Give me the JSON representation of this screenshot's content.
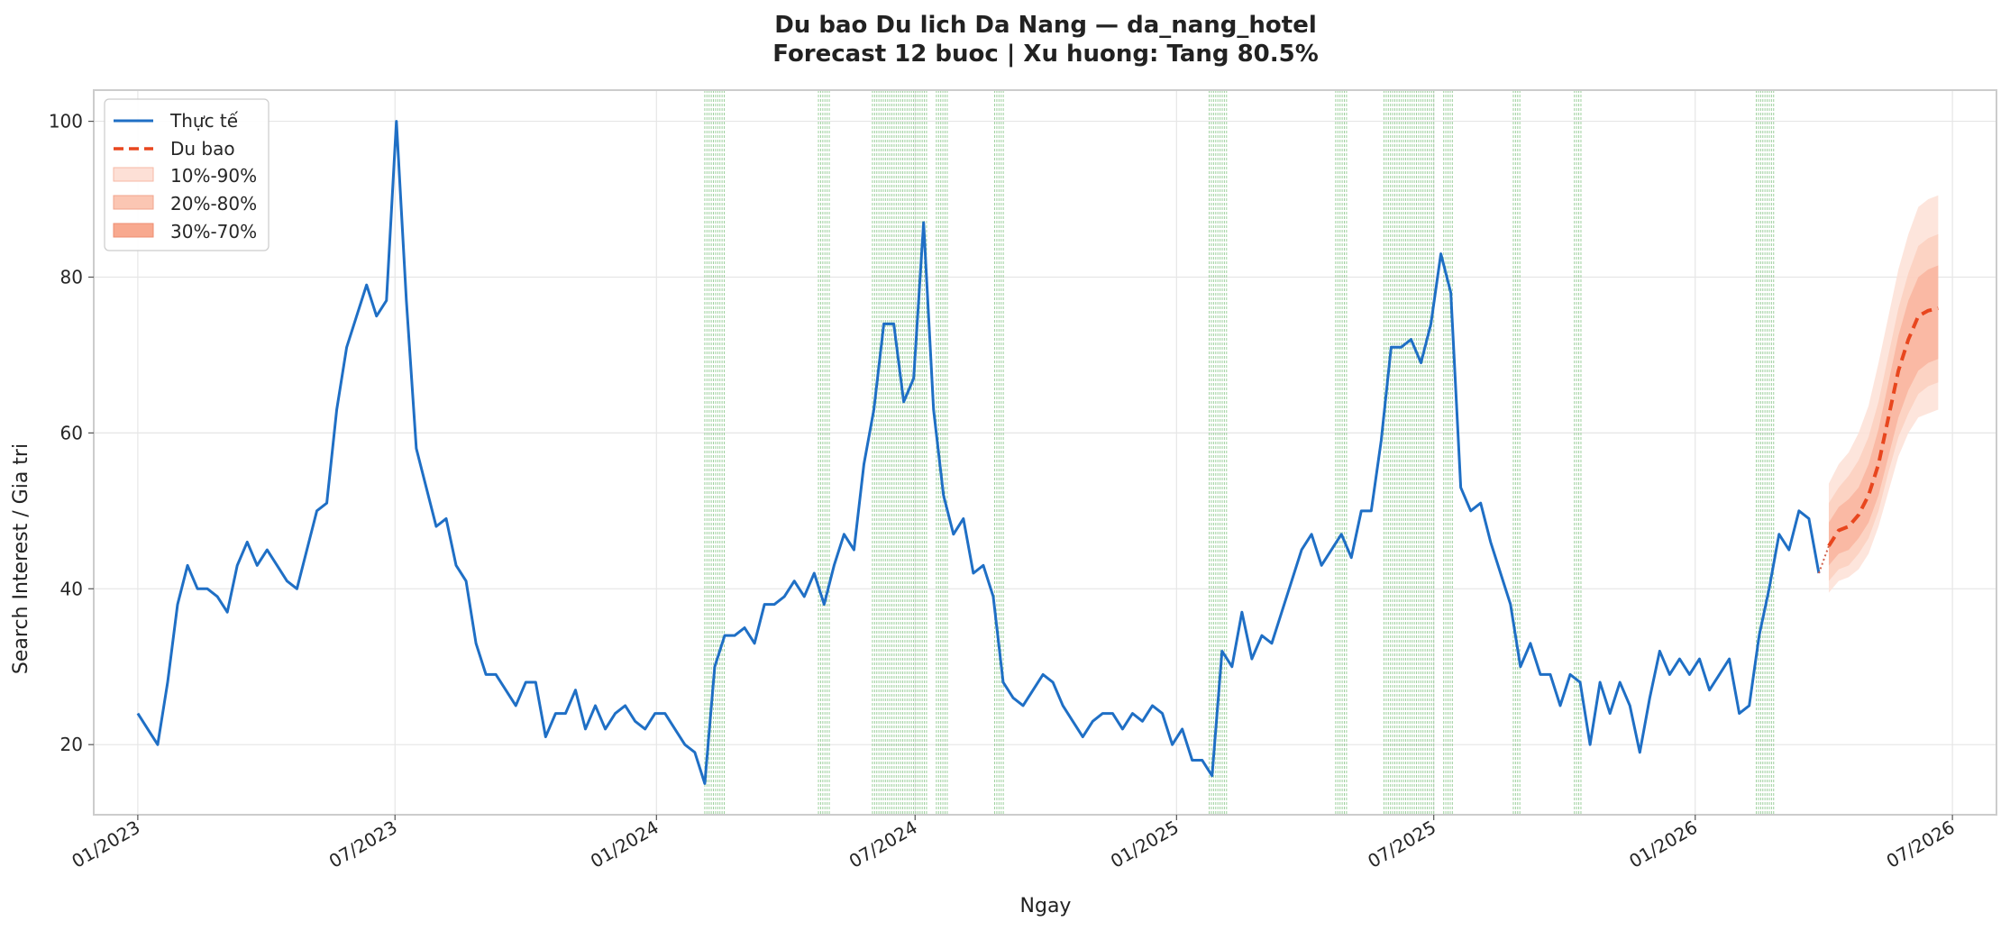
{
  "chart_data": {
    "type": "line",
    "title": "Du bao Du lich Da Nang — da_nang_hotel",
    "subtitle": "Forecast 12 buoc | Xu huong: Tang 80.5%",
    "xlabel": "Ngay",
    "ylabel": "Search Interest / Gia tri",
    "xlim": [
      "2022-12-01",
      "2026-08-01"
    ],
    "ylim": [
      11,
      104
    ],
    "grid": true,
    "legend_position": "top-left",
    "x_tick_labels": [
      {
        "date": "2023-01-01",
        "label": "01/2023"
      },
      {
        "date": "2023-07-01",
        "label": "07/2023"
      },
      {
        "date": "2024-01-01",
        "label": "01/2024"
      },
      {
        "date": "2024-07-01",
        "label": "07/2024"
      },
      {
        "date": "2025-01-01",
        "label": "01/2025"
      },
      {
        "date": "2025-07-01",
        "label": "07/2025"
      },
      {
        "date": "2026-01-01",
        "label": "01/2026"
      },
      {
        "date": "2026-07-01",
        "label": "07/2026"
      }
    ],
    "y_ticks": [
      20,
      40,
      60,
      80,
      100
    ],
    "colors": {
      "actual": "#1f6fc5",
      "forecast": "#e8461e",
      "band_10_90": "#fde0d6",
      "band_20_80": "#fbc6b3",
      "band_30_70": "#f8a98f",
      "holiday": "#7cc07c",
      "grid": "#e6e6e6"
    },
    "legend": {
      "actual": "Thực tế",
      "forecast": "Du bao",
      "band_10_90": "10%-90%",
      "band_20_80": "20%-80%",
      "band_30_70": "30%-70%"
    },
    "series": [
      {
        "name": "Thực tế",
        "x": [
          "2023-01-01",
          "2023-01-08",
          "2023-01-15",
          "2023-01-22",
          "2023-01-29",
          "2023-02-05",
          "2023-02-12",
          "2023-02-19",
          "2023-02-26",
          "2023-03-05",
          "2023-03-12",
          "2023-03-19",
          "2023-03-26",
          "2023-04-02",
          "2023-04-09",
          "2023-04-16",
          "2023-04-23",
          "2023-04-30",
          "2023-05-07",
          "2023-05-14",
          "2023-05-21",
          "2023-05-28",
          "2023-06-04",
          "2023-06-11",
          "2023-06-18",
          "2023-06-25",
          "2023-07-02",
          "2023-07-09",
          "2023-07-16",
          "2023-07-23",
          "2023-07-30",
          "2023-08-06",
          "2023-08-13",
          "2023-08-20",
          "2023-08-27",
          "2023-09-03",
          "2023-09-10",
          "2023-09-17",
          "2023-09-24",
          "2023-10-01",
          "2023-10-08",
          "2023-10-15",
          "2023-10-22",
          "2023-10-29",
          "2023-11-05",
          "2023-11-12",
          "2023-11-19",
          "2023-11-26",
          "2023-12-03",
          "2023-12-10",
          "2023-12-17",
          "2023-12-24",
          "2023-12-31",
          "2024-01-07",
          "2024-01-14",
          "2024-01-21",
          "2024-01-28",
          "2024-02-04",
          "2024-02-11",
          "2024-02-18",
          "2024-02-25",
          "2024-03-03",
          "2024-03-10",
          "2024-03-17",
          "2024-03-24",
          "2024-03-31",
          "2024-04-07",
          "2024-04-14",
          "2024-04-21",
          "2024-04-28",
          "2024-05-05",
          "2024-05-12",
          "2024-05-19",
          "2024-05-26",
          "2024-06-02",
          "2024-06-09",
          "2024-06-16",
          "2024-06-23",
          "2024-06-30",
          "2024-07-07",
          "2024-07-14",
          "2024-07-21",
          "2024-07-28",
          "2024-08-04",
          "2024-08-11",
          "2024-08-18",
          "2024-08-25",
          "2024-09-01",
          "2024-09-08",
          "2024-09-15",
          "2024-09-22",
          "2024-09-29",
          "2024-10-06",
          "2024-10-13",
          "2024-10-20",
          "2024-10-27",
          "2024-11-03",
          "2024-11-10",
          "2024-11-17",
          "2024-11-24",
          "2024-12-01",
          "2024-12-08",
          "2024-12-15",
          "2024-12-22",
          "2024-12-29",
          "2025-01-05",
          "2025-01-12",
          "2025-01-19",
          "2025-01-26",
          "2025-02-02",
          "2025-02-09",
          "2025-02-16",
          "2025-02-23",
          "2025-03-02",
          "2025-03-09",
          "2025-03-16",
          "2025-03-23",
          "2025-03-30",
          "2025-04-06",
          "2025-04-13",
          "2025-04-20",
          "2025-04-27",
          "2025-05-04",
          "2025-05-11",
          "2025-05-18",
          "2025-05-25",
          "2025-06-01",
          "2025-06-08",
          "2025-06-15",
          "2025-06-22",
          "2025-06-29",
          "2025-07-06",
          "2025-07-13",
          "2025-07-20",
          "2025-07-27",
          "2025-08-03",
          "2025-08-10",
          "2025-08-17",
          "2025-08-24",
          "2025-08-31",
          "2025-09-07",
          "2025-09-14",
          "2025-09-21",
          "2025-09-28",
          "2025-10-05",
          "2025-10-12",
          "2025-10-19",
          "2025-10-26",
          "2025-11-02",
          "2025-11-09",
          "2025-11-16",
          "2025-11-23",
          "2025-11-30",
          "2025-12-07",
          "2025-12-14",
          "2025-12-21",
          "2025-12-28",
          "2026-01-04",
          "2026-01-11",
          "2026-01-18",
          "2026-01-25",
          "2026-02-01",
          "2026-02-08",
          "2026-02-15",
          "2026-02-22",
          "2026-03-01",
          "2026-03-08",
          "2026-03-15",
          "2026-03-22",
          "2026-03-29"
        ],
        "values": [
          24,
          22,
          20,
          28,
          38,
          43,
          40,
          40,
          39,
          37,
          43,
          46,
          43,
          45,
          43,
          41,
          40,
          45,
          50,
          51,
          63,
          71,
          75,
          79,
          75,
          77,
          100,
          77,
          58,
          53,
          48,
          49,
          43,
          41,
          33,
          29,
          29,
          27,
          25,
          28,
          28,
          21,
          24,
          24,
          27,
          22,
          25,
          22,
          24,
          25,
          23,
          22,
          24,
          24,
          22,
          20,
          19,
          15,
          30,
          34,
          34,
          35,
          33,
          38,
          38,
          39,
          41,
          39,
          42,
          38,
          43,
          47,
          45,
          56,
          63,
          74,
          74,
          64,
          67,
          87,
          63,
          52,
          47,
          49,
          42,
          43,
          39,
          28,
          26,
          25,
          27,
          29,
          28,
          25,
          23,
          21,
          23,
          24,
          24,
          22,
          24,
          23,
          25,
          24,
          20,
          22,
          18,
          18,
          16,
          32,
          30,
          37,
          31,
          34,
          33,
          37,
          41,
          45,
          47,
          43,
          45,
          47,
          44,
          50,
          50,
          59,
          71,
          71,
          72,
          69,
          74,
          83,
          78,
          53,
          50,
          51,
          46,
          42,
          38,
          30,
          33,
          29,
          29,
          25,
          29,
          28,
          20,
          28,
          24,
          28,
          25,
          19,
          26,
          32,
          29,
          31,
          29,
          31,
          27,
          29,
          31,
          24,
          25,
          34,
          40,
          47,
          45,
          50,
          49,
          42
        ]
      },
      {
        "name": "Du bao",
        "x": [
          "2026-04-05",
          "2026-04-12",
          "2026-04-19",
          "2026-04-26",
          "2026-05-03",
          "2026-05-10",
          "2026-05-17",
          "2026-05-24",
          "2026-05-31",
          "2026-06-07",
          "2026-06-14",
          "2026-06-21"
        ],
        "values": [
          45.5,
          47.5,
          48,
          49.5,
          52,
          56,
          62,
          68,
          72,
          75,
          75.7,
          76
        ],
        "band_10_90": {
          "low": [
            39.5,
            41,
            41.5,
            42.5,
            44.5,
            48,
            52.5,
            57,
            60,
            62,
            62.5,
            63
          ],
          "high": [
            53.5,
            56,
            57.5,
            60,
            63.5,
            69,
            75,
            81,
            85.5,
            89,
            90,
            90.5
          ]
        },
        "band_20_80": {
          "low": [
            41,
            42.5,
            43,
            44.5,
            46.5,
            50,
            55,
            59.5,
            62.5,
            65,
            66,
            66.5
          ],
          "high": [
            51,
            53,
            54.5,
            56.5,
            59.5,
            64,
            70,
            76,
            80.5,
            84,
            85,
            85.5
          ]
        },
        "band_30_70": {
          "low": [
            43,
            44.5,
            45,
            46.5,
            48.5,
            52,
            57,
            62,
            65.5,
            68,
            69,
            69.5
          ],
          "high": [
            48.5,
            50.5,
            51.5,
            53,
            56,
            60.5,
            66.5,
            72.5,
            77,
            80,
            81,
            81.5
          ]
        }
      }
    ],
    "holiday_ranges": [
      [
        "2024-02-04",
        "2024-02-18"
      ],
      [
        "2024-04-24",
        "2024-05-02"
      ],
      [
        "2024-06-01",
        "2024-07-10"
      ],
      [
        "2024-07-16",
        "2024-07-24"
      ],
      [
        "2024-08-26",
        "2024-09-02"
      ],
      [
        "2025-01-24",
        "2025-02-06"
      ],
      [
        "2025-04-23",
        "2025-05-01"
      ],
      [
        "2025-05-27",
        "2025-07-02"
      ],
      [
        "2025-07-08",
        "2025-07-15"
      ],
      [
        "2025-08-26",
        "2025-09-01"
      ],
      [
        "2025-10-08",
        "2025-10-13"
      ],
      [
        "2026-02-13",
        "2026-02-26"
      ]
    ]
  }
}
